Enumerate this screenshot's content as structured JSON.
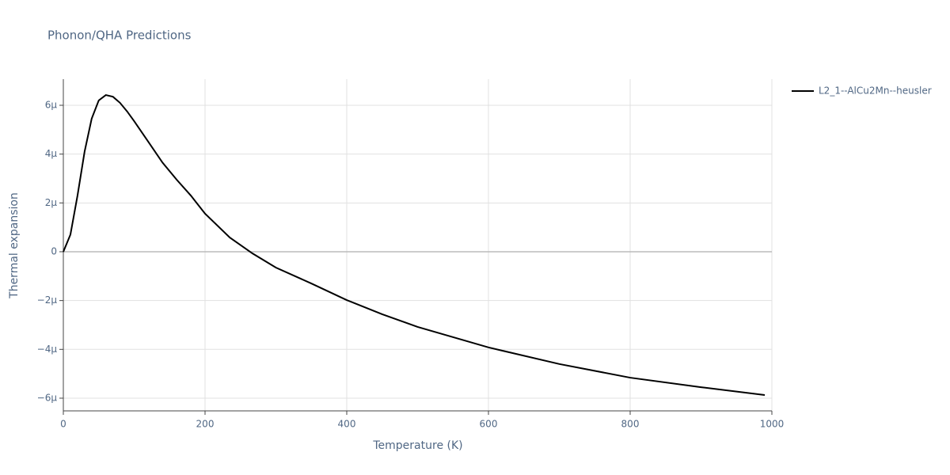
{
  "chart_data": {
    "type": "line",
    "title": "Phonon/QHA Predictions",
    "x_label": "Temperature (K)",
    "y_label": "Thermal expansion",
    "x": [
      0,
      10,
      20,
      30,
      40,
      50,
      60,
      70,
      80,
      90,
      100,
      120,
      140,
      160,
      180,
      200,
      235,
      267,
      300,
      350,
      400,
      450,
      500,
      600,
      700,
      800,
      900,
      990
    ],
    "series": [
      {
        "name": "L2_1--AlCu2Mn--heusler",
        "color": "#000000",
        "values": [
          0,
          7e-07,
          2.3e-06,
          4.1e-06,
          5.45e-06,
          6.2e-06,
          6.42e-06,
          6.35e-06,
          6.1e-06,
          5.75e-06,
          5.35e-06,
          4.5e-06,
          3.65e-06,
          2.95e-06,
          2.3e-06,
          1.56e-06,
          5.8e-07,
          -7e-08,
          -6.5e-07,
          -1.3e-06,
          -1.98e-06,
          -2.56e-06,
          -3.08e-06,
          -3.92e-06,
          -4.6e-06,
          -5.16e-06,
          -5.55e-06,
          -5.87e-06
        ]
      }
    ],
    "xlim": [
      0,
      1000
    ],
    "xticks": [
      0,
      200,
      400,
      600,
      800,
      1000
    ],
    "ylim": [
      -6.52e-06,
      7.07e-06
    ],
    "yticks": [
      {
        "value": -6e-06,
        "label": "−6μ"
      },
      {
        "value": -4e-06,
        "label": "−4μ"
      },
      {
        "value": -2e-06,
        "label": "−2μ"
      },
      0,
      {
        "value": 2e-06,
        "label": "2μ"
      },
      {
        "value": 4e-06,
        "label": "4μ"
      },
      {
        "value": 6e-06,
        "label": "6μ"
      }
    ],
    "grid": true
  }
}
